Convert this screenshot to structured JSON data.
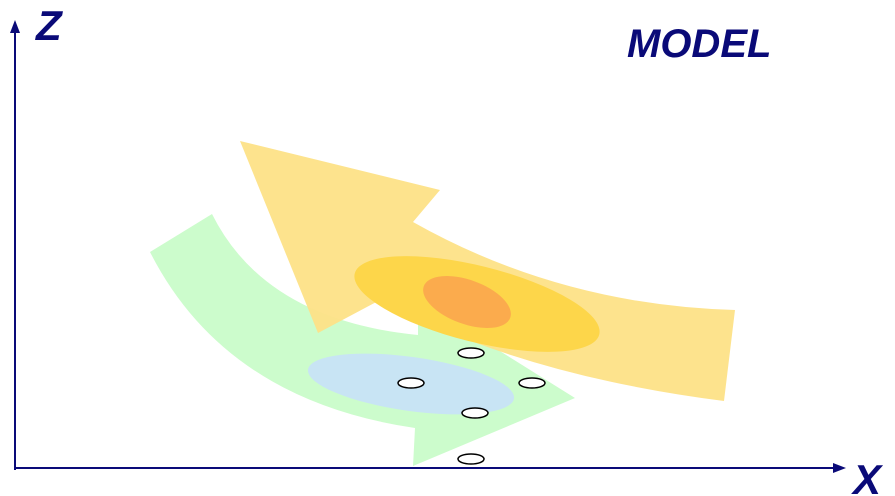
{
  "diagram": {
    "title": "MODEL",
    "z_axis_label": "Z",
    "x_axis_label": "X"
  },
  "colors": {
    "axis": "#0a0a78",
    "text": "#0a0a78",
    "green_arrow": "#ccfccc",
    "blue_ellipse": "#c8e4f4",
    "yellow_arrow": "#fde287",
    "yellow_ellipse": "#fdd64a",
    "orange_ellipse": "#fbab4d",
    "marker_fill": "#ffffff",
    "marker_stroke": "#000000"
  }
}
